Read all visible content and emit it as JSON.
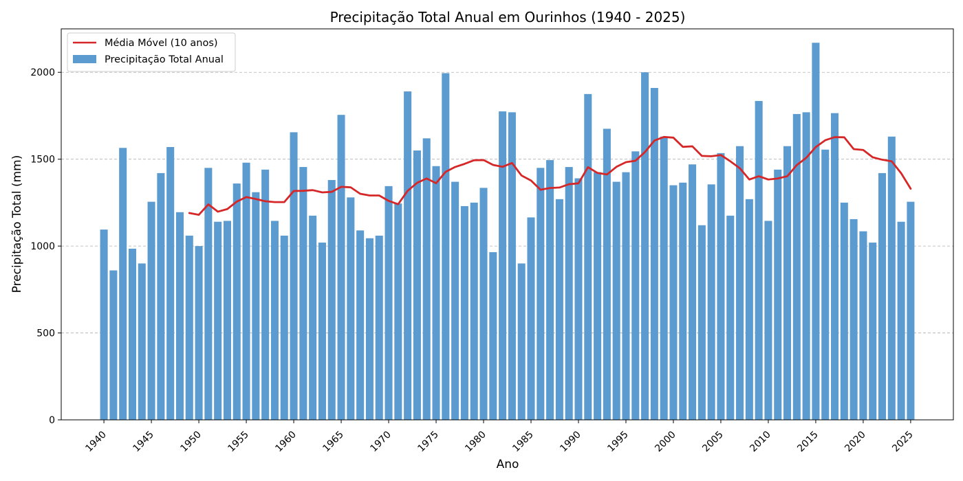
{
  "chart_data": {
    "type": "bar",
    "title": "Precipitação Total Anual em Ourinhos (1940 - 2025)",
    "xlabel": "Ano",
    "ylabel": "Precipitação Total (mm)",
    "ylim": [
      0,
      2250
    ],
    "xlim": [
      1935.5,
      2029.5
    ],
    "yticks": [
      0,
      500,
      1000,
      1500,
      2000
    ],
    "xticks": [
      1940,
      1945,
      1950,
      1955,
      1960,
      1965,
      1970,
      1975,
      1980,
      1985,
      1990,
      1995,
      2000,
      2005,
      2010,
      2015,
      2020,
      2025
    ],
    "grid": "horizontal dashed",
    "legend_position": "top-left",
    "colors": {
      "bars": "#5b9bd0",
      "line": "#d62728"
    },
    "series": [
      {
        "name": "Precipitação Total Anual",
        "type": "bar",
        "x": [
          1940,
          1941,
          1942,
          1943,
          1944,
          1945,
          1946,
          1947,
          1948,
          1949,
          1950,
          1951,
          1952,
          1953,
          1954,
          1955,
          1956,
          1957,
          1958,
          1959,
          1960,
          1961,
          1962,
          1963,
          1964,
          1965,
          1966,
          1967,
          1968,
          1969,
          1970,
          1971,
          1972,
          1973,
          1974,
          1975,
          1976,
          1977,
          1978,
          1979,
          1980,
          1981,
          1982,
          1983,
          1984,
          1985,
          1986,
          1987,
          1988,
          1989,
          1990,
          1991,
          1992,
          1993,
          1994,
          1995,
          1996,
          1997,
          1998,
          1999,
          2000,
          2001,
          2002,
          2003,
          2004,
          2005,
          2006,
          2007,
          2008,
          2009,
          2010,
          2011,
          2012,
          2013,
          2014,
          2015,
          2016,
          2017,
          2018,
          2019,
          2020,
          2021,
          2022,
          2023,
          2024,
          2025
        ],
        "values": [
          1095,
          860,
          1565,
          985,
          900,
          1255,
          1420,
          1570,
          1195,
          1060,
          1000,
          1450,
          1140,
          1145,
          1360,
          1480,
          1310,
          1440,
          1145,
          1060,
          1655,
          1455,
          1175,
          1020,
          1380,
          1755,
          1280,
          1090,
          1045,
          1060,
          1345,
          1245,
          1890,
          1550,
          1620,
          1460,
          1995,
          1370,
          1230,
          1250,
          1335,
          965,
          1775,
          1770,
          900,
          1165,
          1450,
          1495,
          1270,
          1455,
          1390,
          1875,
          1425,
          1675,
          1370,
          1425,
          1545,
          2000,
          1910,
          1630,
          1350,
          1365,
          1470,
          1120,
          1355,
          1535,
          1175,
          1575,
          1270,
          1835,
          1145,
          1440,
          1575,
          1760,
          1770,
          2170,
          1555,
          1765,
          1250,
          1155,
          1085,
          1020,
          1420,
          1630,
          1140,
          1255
        ]
      },
      {
        "name": "Média Móvel (10 anos)",
        "type": "line",
        "x": [
          1949,
          1950,
          1951,
          1952,
          1953,
          1954,
          1955,
          1956,
          1957,
          1958,
          1959,
          1960,
          1961,
          1962,
          1963,
          1964,
          1965,
          1966,
          1967,
          1968,
          1969,
          1970,
          1971,
          1972,
          1973,
          1974,
          1975,
          1976,
          1977,
          1978,
          1979,
          1980,
          1981,
          1982,
          1983,
          1984,
          1985,
          1986,
          1987,
          1988,
          1989,
          1990,
          1991,
          1992,
          1993,
          1994,
          1995,
          1996,
          1997,
          1998,
          1999,
          2000,
          2001,
          2002,
          2003,
          2004,
          2005,
          2006,
          2007,
          2008,
          2009,
          2010,
          2011,
          2012,
          2013,
          2014,
          2015,
          2016,
          2017,
          2018,
          2019,
          2020,
          2021,
          2022,
          2023,
          2024,
          2025
        ],
        "values": [
          1190,
          1180,
          1240,
          1198,
          1213,
          1256,
          1282,
          1271,
          1258,
          1253,
          1253,
          1317,
          1318,
          1322,
          1309,
          1312,
          1341,
          1338,
          1301,
          1291,
          1291,
          1260,
          1241,
          1318,
          1364,
          1389,
          1362,
          1427,
          1455,
          1473,
          1494,
          1495,
          1467,
          1456,
          1478,
          1406,
          1377,
          1324,
          1334,
          1337,
          1356,
          1361,
          1454,
          1421,
          1412,
          1456,
          1483,
          1491,
          1541,
          1607,
          1628,
          1624,
          1571,
          1574,
          1519,
          1517,
          1524,
          1488,
          1448,
          1383,
          1402,
          1383,
          1389,
          1402,
          1466,
          1508,
          1570,
          1609,
          1627,
          1626,
          1558,
          1553,
          1511,
          1497,
          1488,
          1419,
          1330
        ]
      }
    ]
  }
}
